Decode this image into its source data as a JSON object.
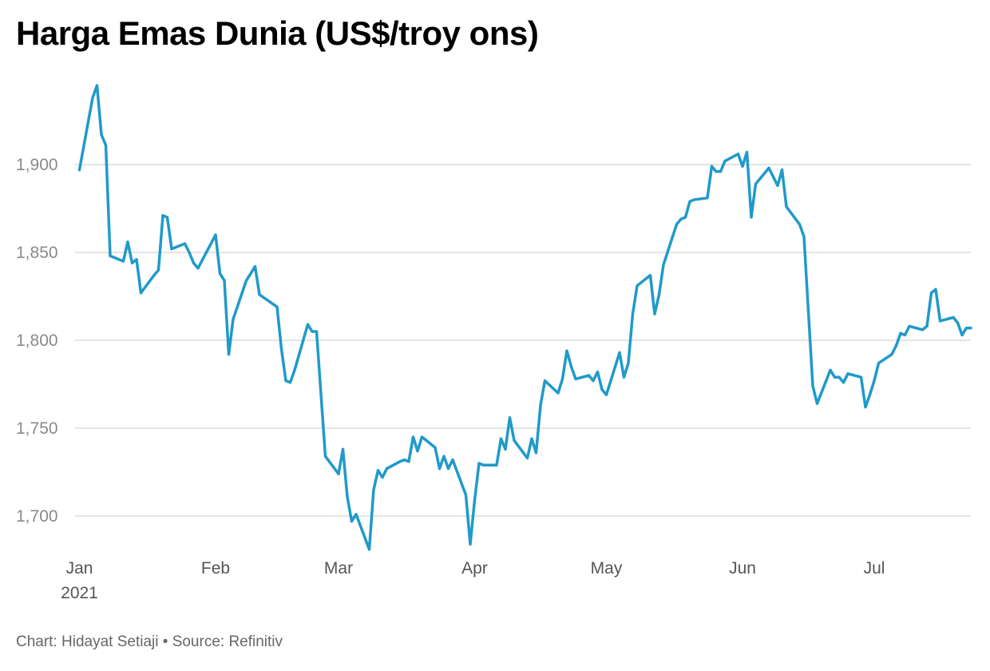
{
  "chart_data": {
    "type": "line",
    "title": "Harga Emas Dunia (US$/troy ons)",
    "subtitle": "",
    "xlabel": "",
    "ylabel": "",
    "x_ticks": [
      "Jan",
      "Feb",
      "Mar",
      "Apr",
      "May",
      "Jun",
      "Jul"
    ],
    "x_year_label": "2021",
    "y_ticks": [
      1700,
      1750,
      1800,
      1850,
      1900
    ],
    "y_tick_labels": [
      "1,700",
      "1,750",
      "1,800",
      "1,850",
      "1,900"
    ],
    "ylim": [
      1680,
      1950
    ],
    "xlim": [
      "2020-12-31",
      "2021-07-23"
    ],
    "grid": true,
    "line_color": "#209ac9",
    "series": [
      {
        "points": [
          [
            "2021-01-01",
            1897
          ],
          [
            "2021-01-04",
            1938
          ],
          [
            "2021-01-05",
            1945
          ],
          [
            "2021-01-06",
            1917
          ],
          [
            "2021-01-07",
            1911
          ],
          [
            "2021-01-08",
            1848
          ],
          [
            "2021-01-11",
            1845
          ],
          [
            "2021-01-12",
            1856
          ],
          [
            "2021-01-13",
            1844
          ],
          [
            "2021-01-14",
            1846
          ],
          [
            "2021-01-15",
            1827
          ],
          [
            "2021-01-18",
            1837
          ],
          [
            "2021-01-19",
            1840
          ],
          [
            "2021-01-20",
            1871
          ],
          [
            "2021-01-21",
            1870
          ],
          [
            "2021-01-22",
            1852
          ],
          [
            "2021-01-25",
            1855
          ],
          [
            "2021-01-26",
            1850
          ],
          [
            "2021-01-27",
            1844
          ],
          [
            "2021-01-28",
            1841
          ],
          [
            "2021-02-01",
            1860
          ],
          [
            "2021-02-02",
            1838
          ],
          [
            "2021-02-03",
            1834
          ],
          [
            "2021-02-04",
            1792
          ],
          [
            "2021-02-05",
            1812
          ],
          [
            "2021-02-08",
            1834
          ],
          [
            "2021-02-09",
            1838
          ],
          [
            "2021-02-10",
            1842
          ],
          [
            "2021-02-11",
            1826
          ],
          [
            "2021-02-15",
            1819
          ],
          [
            "2021-02-16",
            1795
          ],
          [
            "2021-02-17",
            1777
          ],
          [
            "2021-02-18",
            1776
          ],
          [
            "2021-02-19",
            1783
          ],
          [
            "2021-02-22",
            1809
          ],
          [
            "2021-02-23",
            1805
          ],
          [
            "2021-02-24",
            1805
          ],
          [
            "2021-02-26",
            1734
          ],
          [
            "2021-03-01",
            1724
          ],
          [
            "2021-03-02",
            1738
          ],
          [
            "2021-03-03",
            1711
          ],
          [
            "2021-03-04",
            1697
          ],
          [
            "2021-03-05",
            1701
          ],
          [
            "2021-03-08",
            1681
          ],
          [
            "2021-03-09",
            1715
          ],
          [
            "2021-03-10",
            1726
          ],
          [
            "2021-03-11",
            1722
          ],
          [
            "2021-03-12",
            1727
          ],
          [
            "2021-03-15",
            1731
          ],
          [
            "2021-03-16",
            1732
          ],
          [
            "2021-03-17",
            1731
          ],
          [
            "2021-03-18",
            1745
          ],
          [
            "2021-03-19",
            1737
          ],
          [
            "2021-03-20",
            1745
          ],
          [
            "2021-03-23",
            1739
          ],
          [
            "2021-03-24",
            1727
          ],
          [
            "2021-03-25",
            1734
          ],
          [
            "2021-03-26",
            1727
          ],
          [
            "2021-03-27",
            1732
          ],
          [
            "2021-03-30",
            1712
          ],
          [
            "2021-03-31",
            1684
          ],
          [
            "2021-04-01",
            1709
          ],
          [
            "2021-04-02",
            1730
          ],
          [
            "2021-04-03",
            1729
          ],
          [
            "2021-04-06",
            1729
          ],
          [
            "2021-04-07",
            1744
          ],
          [
            "2021-04-08",
            1738
          ],
          [
            "2021-04-09",
            1756
          ],
          [
            "2021-04-10",
            1743
          ],
          [
            "2021-04-13",
            1733
          ],
          [
            "2021-04-14",
            1744
          ],
          [
            "2021-04-15",
            1736
          ],
          [
            "2021-04-16",
            1763
          ],
          [
            "2021-04-17",
            1777
          ],
          [
            "2021-04-20",
            1770
          ],
          [
            "2021-04-21",
            1778
          ],
          [
            "2021-04-22",
            1794
          ],
          [
            "2021-04-23",
            1785
          ],
          [
            "2021-04-24",
            1778
          ],
          [
            "2021-04-27",
            1780
          ],
          [
            "2021-04-28",
            1777
          ],
          [
            "2021-04-29",
            1782
          ],
          [
            "2021-04-30",
            1772
          ],
          [
            "2021-05-01",
            1769
          ],
          [
            "2021-05-04",
            1793
          ],
          [
            "2021-05-05",
            1779
          ],
          [
            "2021-05-06",
            1787
          ],
          [
            "2021-05-07",
            1815
          ],
          [
            "2021-05-08",
            1831
          ],
          [
            "2021-05-11",
            1837
          ],
          [
            "2021-05-12",
            1815
          ],
          [
            "2021-05-13",
            1826
          ],
          [
            "2021-05-14",
            1843
          ],
          [
            "2021-05-17",
            1866
          ],
          [
            "2021-05-18",
            1869
          ],
          [
            "2021-05-19",
            1870
          ],
          [
            "2021-05-20",
            1879
          ],
          [
            "2021-05-21",
            1880
          ],
          [
            "2021-05-24",
            1881
          ],
          [
            "2021-05-25",
            1899
          ],
          [
            "2021-05-26",
            1896
          ],
          [
            "2021-05-27",
            1896
          ],
          [
            "2021-05-28",
            1902
          ],
          [
            "2021-05-31",
            1906
          ],
          [
            "2021-06-01",
            1899
          ],
          [
            "2021-06-02",
            1907
          ],
          [
            "2021-06-03",
            1870
          ],
          [
            "2021-06-04",
            1889
          ],
          [
            "2021-06-07",
            1898
          ],
          [
            "2021-06-08",
            1893
          ],
          [
            "2021-06-09",
            1888
          ],
          [
            "2021-06-10",
            1897
          ],
          [
            "2021-06-11",
            1876
          ],
          [
            "2021-06-14",
            1866
          ],
          [
            "2021-06-15",
            1859
          ],
          [
            "2021-06-17",
            1774
          ],
          [
            "2021-06-18",
            1764
          ],
          [
            "2021-06-21",
            1783
          ],
          [
            "2021-06-22",
            1779
          ],
          [
            "2021-06-23",
            1779
          ],
          [
            "2021-06-24",
            1776
          ],
          [
            "2021-06-25",
            1781
          ],
          [
            "2021-06-28",
            1779
          ],
          [
            "2021-06-29",
            1762
          ],
          [
            "2021-06-30",
            1769
          ],
          [
            "2021-07-01",
            1777
          ],
          [
            "2021-07-02",
            1787
          ],
          [
            "2021-07-05",
            1792
          ],
          [
            "2021-07-06",
            1797
          ],
          [
            "2021-07-07",
            1804
          ],
          [
            "2021-07-08",
            1803
          ],
          [
            "2021-07-09",
            1808
          ],
          [
            "2021-07-12",
            1806
          ],
          [
            "2021-07-13",
            1808
          ],
          [
            "2021-07-14",
            1827
          ],
          [
            "2021-07-15",
            1829
          ],
          [
            "2021-07-16",
            1811
          ],
          [
            "2021-07-19",
            1813
          ],
          [
            "2021-07-20",
            1810
          ],
          [
            "2021-07-21",
            1803
          ],
          [
            "2021-07-22",
            1807
          ],
          [
            "2021-07-23",
            1807
          ]
        ]
      }
    ]
  },
  "footer": {
    "chart_credit": "Chart: Hidayat Setiaji",
    "separator": "•",
    "source": "Source: Refinitiv"
  }
}
